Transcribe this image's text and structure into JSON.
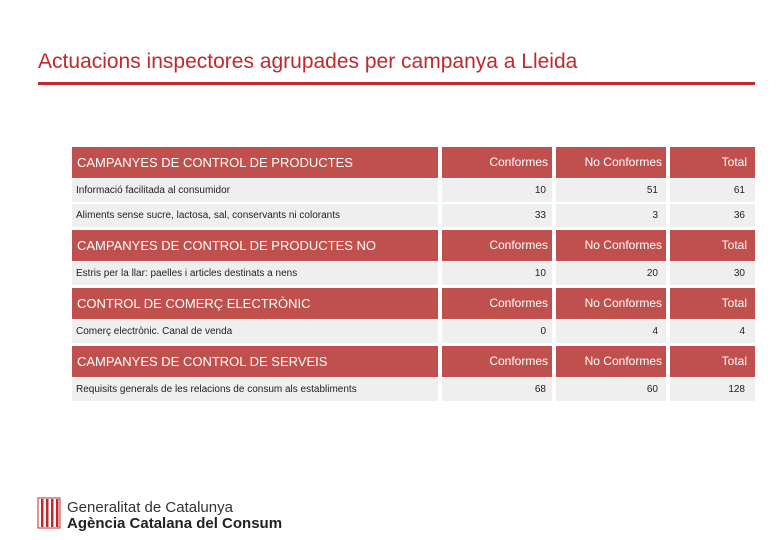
{
  "title": "Actuacions inspectores agrupades per campanya a Lleida",
  "sections": [
    {
      "name": "CAMPANYES DE CONTROL DE PRODUCTES ALIMENTARIS",
      "cols": [
        "Conformes",
        "No Conformes",
        "Total"
      ],
      "rows": [
        {
          "label": "Informació facilitada al consumidor",
          "conformes": "10",
          "no_conformes": "51",
          "total": "61"
        },
        {
          "label": "Aliments sense sucre, lactosa, sal, conservants ni colorants",
          "conformes": "33",
          "no_conformes": "3",
          "total": "36"
        }
      ]
    },
    {
      "name": "CAMPANYES DE CONTROL DE PRODUCTES NO ALIMENTARIS",
      "cols": [
        "Conformes",
        "No Conformes",
        "Total"
      ],
      "rows": [
        {
          "label": "Estris per la llar: paelles i articles destinats a nens",
          "conformes": "10",
          "no_conformes": "20",
          "total": "30"
        }
      ]
    },
    {
      "name": "CONTROL DE COMERÇ ELECTRÒNIC",
      "cols": [
        "Conformes",
        "No Conformes",
        "Total"
      ],
      "rows": [
        {
          "label": "Comerç electrònic. Canal de venda",
          "conformes": "0",
          "no_conformes": "4",
          "total": "4"
        }
      ]
    },
    {
      "name": "CAMPANYES DE CONTROL DE SERVEIS",
      "cols": [
        "Conformes",
        "No Conformes",
        "Total"
      ],
      "rows": [
        {
          "label": "Requisits generals de les relacions de consum als establiments",
          "conformes": "68",
          "no_conformes": "60",
          "total": "128"
        }
      ]
    }
  ],
  "logo": {
    "line1": "Generalitat de Catalunya",
    "line2": "Agència Catalana del Consum",
    "icon": "catalan-flag-shield-icon"
  },
  "colors": {
    "accent": "#c0282d",
    "header_fill": "#c0504d",
    "row_fill": "#efefef"
  }
}
